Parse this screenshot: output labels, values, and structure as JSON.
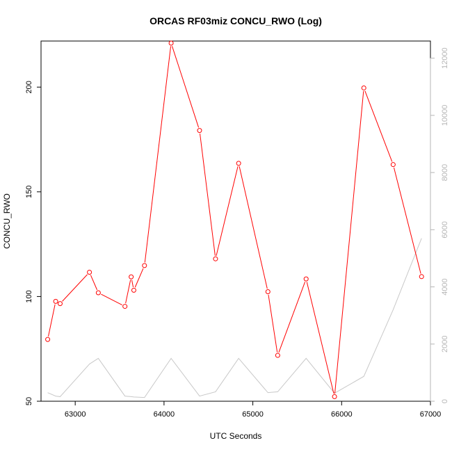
{
  "chart_data": {
    "type": "line",
    "title": "ORCAS RF03miz CONCU_RWO (Log)",
    "xlabel": "UTC Seconds",
    "ylabel": "CONCU_RWO",
    "xlim": [
      62615,
      67000
    ],
    "ylim": [
      50,
      222
    ],
    "y2lim": [
      0,
      12600
    ],
    "x_ticks": [
      63000,
      64000,
      65000,
      66000,
      67000
    ],
    "y_ticks": [
      50,
      100,
      150,
      200
    ],
    "y2_ticks": [
      0,
      2000,
      4000,
      6000,
      8000,
      10000,
      12000
    ],
    "grid": false,
    "series": [
      {
        "axis": "left",
        "color": "#ff0000",
        "marker": "circle",
        "x": [
          62690,
          62780,
          62830,
          63160,
          63260,
          63560,
          63630,
          63660,
          63780,
          64080,
          64400,
          64580,
          64840,
          65170,
          65280,
          65600,
          65920,
          66250,
          66580,
          66900
        ],
        "y": [
          79.5,
          97.7,
          96.6,
          111.6,
          101.8,
          95.3,
          109.4,
          103.0,
          114.8,
          221.0,
          179.3,
          118.0,
          163.6,
          102.3,
          71.9,
          108.4,
          52.2,
          199.6,
          163.0,
          109.5
        ]
      },
      {
        "axis": "right",
        "color": "#c8c8c8",
        "marker": "none",
        "x": [
          62690,
          62780,
          62830,
          63160,
          63260,
          63560,
          63630,
          63660,
          63780,
          64080,
          64400,
          64580,
          64840,
          65170,
          65280,
          65600,
          65920,
          66250,
          66580,
          66900
        ],
        "y": [
          300,
          180,
          160,
          1300,
          1500,
          180,
          160,
          150,
          130,
          1500,
          180,
          330,
          1500,
          300,
          330,
          1500,
          280,
          870,
          3200,
          5700
        ]
      }
    ]
  }
}
